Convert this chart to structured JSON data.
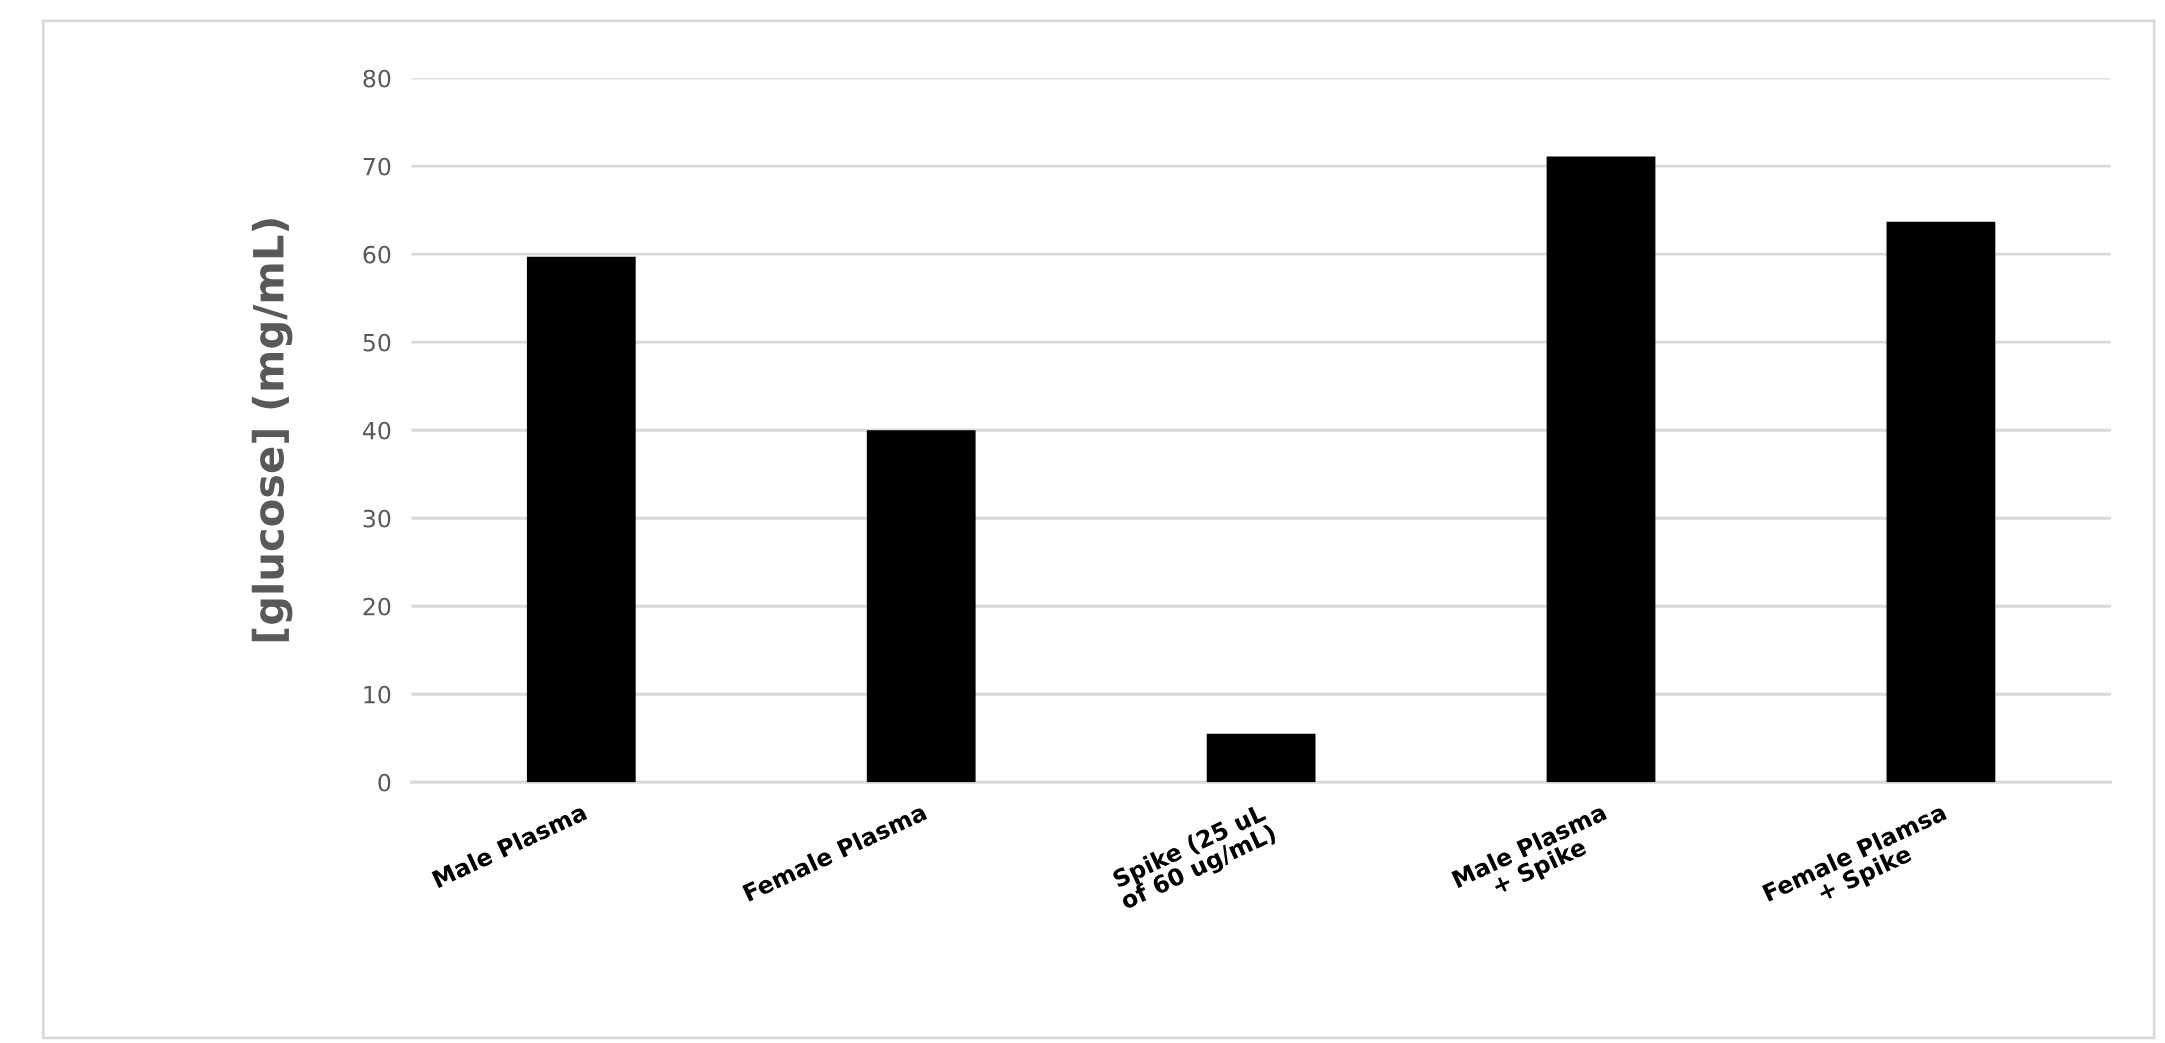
{
  "chart_data": {
    "type": "bar",
    "ylabel": "[glucose] (mg/mL)",
    "categories": [
      "Male Plasma",
      "Female Plasma",
      "Spike (25 uL\nof 60 ug/mL)",
      "Male Plasma\n+ Spike",
      "Female Plamsa\n+ Spike"
    ],
    "values": [
      59.7,
      40,
      5.5,
      71.1,
      63.7
    ],
    "color": "#000000",
    "ylim": [
      0,
      80
    ],
    "yticks": [
      0,
      10,
      20,
      30,
      40,
      50,
      60,
      70,
      80
    ],
    "grid": "y"
  }
}
